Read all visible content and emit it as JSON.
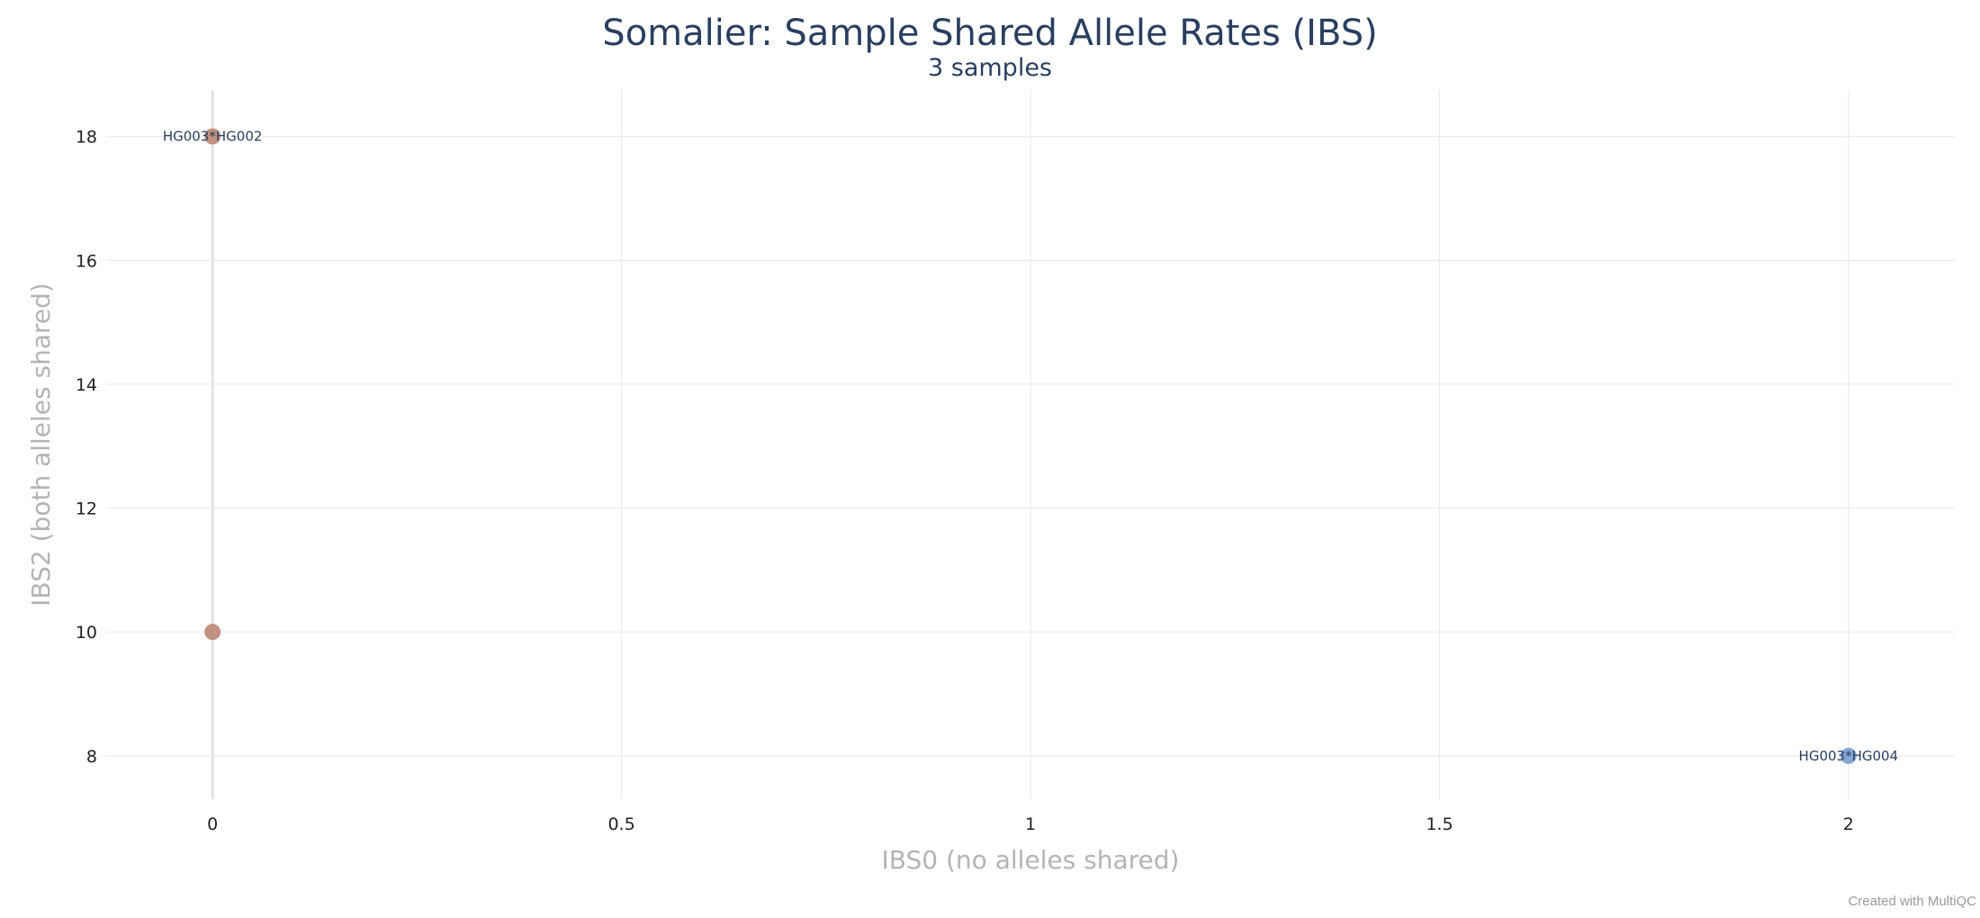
{
  "chart_data": {
    "type": "scatter",
    "title": "Somalier: Sample Shared Allele Rates (IBS)",
    "subtitle": "3 samples",
    "xlabel": "IBS0 (no alleles shared)",
    "ylabel": "IBS2 (both alleles shared)",
    "xlim": [
      -0.13,
      2.13
    ],
    "ylim": [
      7.3,
      18.75
    ],
    "x_ticks": [
      0,
      0.5,
      1,
      1.5,
      2
    ],
    "x_tick_labels": [
      "0",
      "0.5",
      "1",
      "1.5",
      "2"
    ],
    "y_ticks": [
      8,
      10,
      12,
      14,
      16,
      18
    ],
    "y_tick_labels": [
      "8",
      "10",
      "12",
      "14",
      "16",
      "18"
    ],
    "grid": true,
    "legend": "none",
    "points": [
      {
        "x": 0,
        "y": 18,
        "label": "HG003*HG002",
        "color": "#bf8c7c"
      },
      {
        "x": 0,
        "y": 10,
        "label": "",
        "color": "#bf8c7c"
      },
      {
        "x": 2,
        "y": 8,
        "label": "HG003*HG004",
        "color": "#7fa1d1"
      }
    ]
  },
  "footer": {
    "credit": "Created with MultiQC"
  }
}
